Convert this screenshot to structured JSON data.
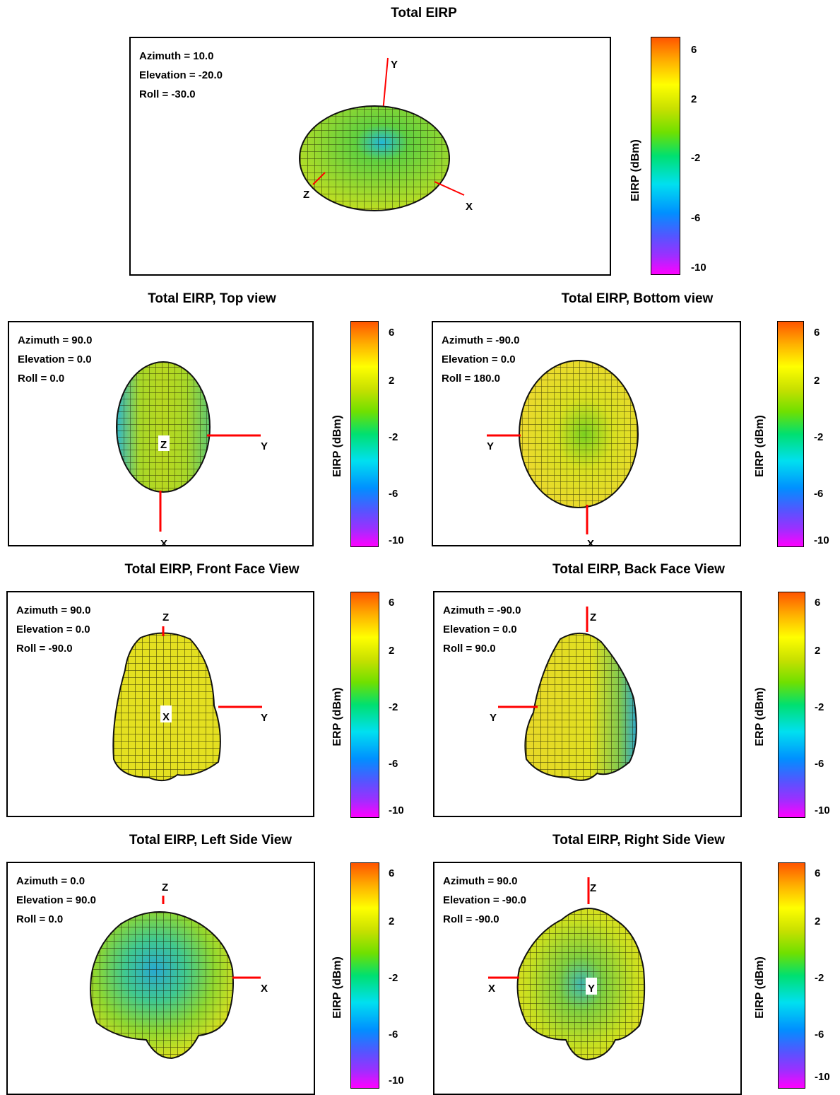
{
  "colorbar": {
    "label": "EIRP (dBm)",
    "label_variant": "ERP (dBm)",
    "ticks": [
      "6",
      "2",
      "-2",
      "-6",
      "-10"
    ],
    "tick_values": [
      6,
      2,
      -2,
      -6,
      -10
    ],
    "range": [
      -10,
      7
    ]
  },
  "colors": {
    "axis": "#ff0000",
    "mesh": "#1a1a00",
    "yellow": "#e8e820",
    "green": "#7ad420",
    "cyan": "#22b8d8"
  },
  "chart_data": [
    {
      "type": "3d-radiation-pattern",
      "title": "Total EIRP",
      "params": {
        "azimuth": "Azimuth = 10.0",
        "elevation": "Elevation = -20.0",
        "roll": "Roll = -30.0"
      },
      "axes": [
        "X",
        "Y",
        "Z"
      ],
      "colorbar_label": "EIRP (dBm)"
    },
    {
      "type": "3d-radiation-pattern",
      "title": "Total EIRP, Top view",
      "params": {
        "azimuth": "Azimuth = 90.0",
        "elevation": "Elevation = 0.0",
        "roll": "Roll = 0.0"
      },
      "axes": [
        "Z",
        "Y",
        "X"
      ],
      "colorbar_label": "EIRP (dBm)"
    },
    {
      "type": "3d-radiation-pattern",
      "title": "Total EIRP, Bottom view",
      "params": {
        "azimuth": "Azimuth = -90.0",
        "elevation": "Elevation = 0.0",
        "roll": "Roll = 180.0"
      },
      "axes": [
        "Y",
        "X"
      ],
      "colorbar_label": "EIRP (dBm)"
    },
    {
      "type": "3d-radiation-pattern",
      "title": "Total EIRP, Front Face View",
      "params": {
        "azimuth": "Azimuth = 90.0",
        "elevation": "Elevation = 0.0",
        "roll": "Roll = -90.0"
      },
      "axes": [
        "Z",
        "X",
        "Y"
      ],
      "colorbar_label": "ERP (dBm)"
    },
    {
      "type": "3d-radiation-pattern",
      "title": "Total EIRP, Back Face View",
      "params": {
        "azimuth": "Azimuth = -90.0",
        "elevation": "Elevation = 0.0",
        "roll": "Roll = 90.0"
      },
      "axes": [
        "Z",
        "Y"
      ],
      "colorbar_label": "ERP (dBm)"
    },
    {
      "type": "3d-radiation-pattern",
      "title": "Total EIRP, Left Side View",
      "params": {
        "azimuth": "Azimuth = 0.0",
        "elevation": "Elevation = 90.0",
        "roll": "Roll = 0.0"
      },
      "axes": [
        "Z",
        "X"
      ],
      "colorbar_label": "EIRP (dBm)"
    },
    {
      "type": "3d-radiation-pattern",
      "title": "Total EIRP, Right Side View",
      "params": {
        "azimuth": "Azimuth = 90.0",
        "elevation": "Elevation = -90.0",
        "roll": "Roll = -90.0"
      },
      "axes": [
        "Z",
        "X",
        "Y"
      ],
      "colorbar_label": "EIRP (dBm)"
    }
  ]
}
